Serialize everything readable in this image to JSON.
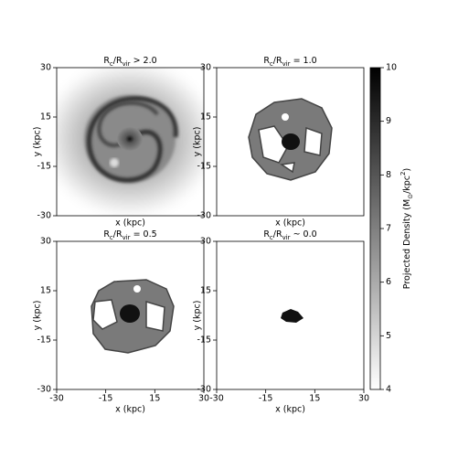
{
  "chart_data": [
    {
      "type": "image",
      "title_parts": [
        "R",
        "c",
        "/R",
        "vir",
        " > 2.0"
      ],
      "xlabel": "x (kpc)",
      "ylabel": "y (kpc)",
      "xlim": [
        -30,
        30
      ],
      "ylim": [
        -30,
        30
      ],
      "yticks": [
        -30,
        -15,
        15,
        30
      ]
    },
    {
      "type": "image",
      "title_parts": [
        "R",
        "c",
        "/R",
        "vir",
        " = 1.0"
      ],
      "xlabel": "x (kpc)",
      "ylabel": "y (kpc)",
      "xlim": [
        -30,
        30
      ],
      "ylim": [
        -30,
        30
      ],
      "yticks": [
        -30,
        -15,
        15,
        30
      ]
    },
    {
      "type": "image",
      "title_parts": [
        "R",
        "c",
        "/R",
        "vir",
        " = 0.5"
      ],
      "xlabel": "x (kpc)",
      "ylabel": "y (kpc)",
      "xlim": [
        -30,
        30
      ],
      "ylim": [
        -30,
        30
      ],
      "xticks": [
        -30,
        -15,
        15,
        30
      ],
      "yticks": [
        -30,
        -15,
        15,
        30
      ]
    },
    {
      "type": "image",
      "title_parts": [
        "R",
        "c",
        "/R",
        "vir",
        " ~ 0.0"
      ],
      "xlabel": "x (kpc)",
      "ylabel": "y (kpc)",
      "xlim": [
        -30,
        30
      ],
      "ylim": [
        -30,
        30
      ],
      "xticks": [
        -30,
        -15,
        15,
        30
      ],
      "yticks": [
        -30,
        -15,
        15,
        30
      ]
    },
    {
      "type": "colorbar",
      "label_parts": [
        "Projected Density (M",
        "⊙",
        "/kpc",
        "2",
        ")"
      ],
      "lim": [
        4,
        10
      ],
      "ticks": [
        4,
        5,
        6,
        7,
        8,
        9,
        10
      ],
      "colors": [
        "#ffffff",
        "#000000"
      ]
    }
  ]
}
